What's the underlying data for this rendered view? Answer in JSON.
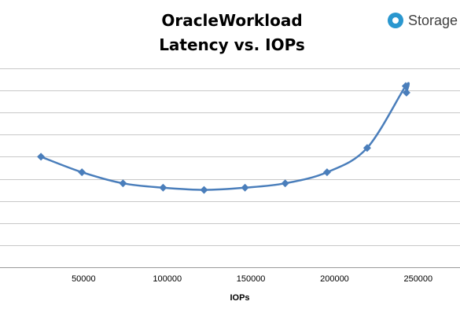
{
  "brand": {
    "name": "Storage",
    "icon": "storage-logo-icon"
  },
  "chart_data": {
    "type": "line",
    "title": [
      "OracleWorkload",
      "Latency vs. IOPs"
    ],
    "xlabel": "IOPs",
    "ylabel": "",
    "xlim": [
      0,
      275000
    ],
    "ylim": [
      0,
      9
    ],
    "x_ticks": [
      50000,
      100000,
      150000,
      200000,
      250000
    ],
    "x_tick_labels": [
      "50000",
      "100000",
      "150000",
      "200000",
      "250000"
    ],
    "y_gridlines": [
      0,
      1,
      2,
      3,
      4,
      5,
      6,
      7,
      8,
      9
    ],
    "grid": true,
    "line_color": "#4a7ebb",
    "series": [
      {
        "name": "",
        "x": [
          24500,
          49000,
          73500,
          97500,
          122000,
          146500,
          170500,
          195500,
          219500,
          242500,
          243000
        ],
        "y": [
          5.0,
          4.3,
          3.8,
          3.6,
          3.5,
          3.6,
          3.8,
          4.3,
          5.4,
          8.2,
          7.9
        ]
      }
    ]
  }
}
